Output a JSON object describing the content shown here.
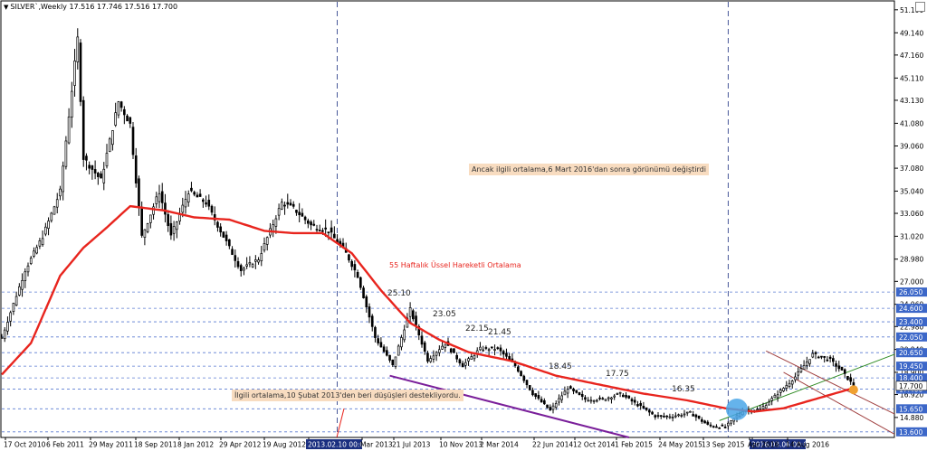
{
  "header": {
    "symbol_line": "SILVER`,Weekly  17.516 17.746 17.516 17.700"
  },
  "annotations": {
    "box_top": "Ancak ilgili ortalama,6 Mart 2016'dan sonra görünümü değiştirdi",
    "ema_label": "55 Haftalık Üssel Hareketli Ortalama",
    "box_bottom": "İlgili ortalama,10 Şubat 2013'den beri düşüşleri destekliyordu.",
    "peaks": [
      "25.10",
      "23.05",
      "22.15",
      "21.45",
      "18.45",
      "17.75",
      "16.35"
    ]
  },
  "colors": {
    "bull": "#ffffff",
    "bear": "#000000",
    "ema": "#e8251e",
    "grid_dash": "#5a7bd1",
    "support_line": "#7a1f9a",
    "channel": "#a04040",
    "trend_green": "#2e8b22",
    "price_box": "#3c67c8",
    "date_box": "#1b2f80",
    "blue_circle": "#4aa6e8",
    "orange_circle": "#f0a030"
  },
  "chart_data": {
    "type": "candlestick",
    "symbol": "SILVER`",
    "timeframe": "Weekly",
    "ylim": [
      13.1,
      51.9
    ],
    "y_ticks": [
      "51.190",
      "49.140",
      "47.160",
      "45.110",
      "43.130",
      "41.080",
      "39.060",
      "37.080",
      "35.040",
      "33.060",
      "31.020",
      "28.980",
      "27.000",
      "24.960",
      "22.980",
      "20.940",
      "18.900",
      "16.920",
      "14.880"
    ],
    "x_ticks": [
      "17 Oct 2010",
      "6 Feb 2011",
      "29 May 2011",
      "18 Sep 2011",
      "8 Jan 2012",
      "29 Apr 2012",
      "19 Aug 2012",
      "2013.02.10 00:00",
      "Mar 2013",
      "21 Jul 2013",
      "10 Nov 2013",
      "2 Mar 2014",
      "22 Jun 2014",
      "12 Oct 2014",
      "1 Feb 2015",
      "24 May 2015",
      "13 Sep 2015",
      "2016.03.06 00:00",
      "Apr 2016",
      "14 Aug 2016"
    ],
    "levels": [
      26.05,
      24.6,
      23.4,
      22.05,
      20.65,
      19.45,
      18.4,
      17.4,
      15.65,
      13.6
    ],
    "level_labels": [
      "26.050",
      "24.600",
      "23.400",
      "22.050",
      "20.650",
      "19.450",
      "18.400",
      "17.400",
      "15.650",
      "13.600"
    ],
    "last_price": "17.700",
    "price_points": [
      {
        "t": 0,
        "v": 22.0
      },
      {
        "t": 8,
        "v": 28.0
      },
      {
        "t": 14,
        "v": 31.0
      },
      {
        "t": 20,
        "v": 35.0
      },
      {
        "t": 26,
        "v": 48.6
      },
      {
        "t": 28,
        "v": 38.0
      },
      {
        "t": 34,
        "v": 36.0
      },
      {
        "t": 40,
        "v": 43.0
      },
      {
        "t": 44,
        "v": 41.0
      },
      {
        "t": 48,
        "v": 31.0
      },
      {
        "t": 54,
        "v": 35.0
      },
      {
        "t": 58,
        "v": 31.0
      },
      {
        "t": 64,
        "v": 35.0
      },
      {
        "t": 70,
        "v": 34.0
      },
      {
        "t": 76,
        "v": 31.0
      },
      {
        "t": 82,
        "v": 28.0
      },
      {
        "t": 88,
        "v": 29.0
      },
      {
        "t": 96,
        "v": 34.0
      },
      {
        "t": 100,
        "v": 33.5
      },
      {
        "t": 106,
        "v": 32.0
      },
      {
        "t": 112,
        "v": 31.5
      },
      {
        "t": 118,
        "v": 29.5
      },
      {
        "t": 122,
        "v": 27.5
      },
      {
        "t": 128,
        "v": 22.0
      },
      {
        "t": 134,
        "v": 19.5
      },
      {
        "t": 140,
        "v": 24.5
      },
      {
        "t": 146,
        "v": 20.0
      },
      {
        "t": 152,
        "v": 21.5
      },
      {
        "t": 158,
        "v": 19.5
      },
      {
        "t": 164,
        "v": 21.0
      },
      {
        "t": 170,
        "v": 21.0
      },
      {
        "t": 176,
        "v": 19.5
      },
      {
        "t": 182,
        "v": 17.0
      },
      {
        "t": 188,
        "v": 15.5
      },
      {
        "t": 194,
        "v": 17.5
      },
      {
        "t": 200,
        "v": 16.5
      },
      {
        "t": 206,
        "v": 16.5
      },
      {
        "t": 212,
        "v": 17.0
      },
      {
        "t": 218,
        "v": 16.0
      },
      {
        "t": 224,
        "v": 15.0
      },
      {
        "t": 230,
        "v": 15.0
      },
      {
        "t": 236,
        "v": 15.3
      },
      {
        "t": 242,
        "v": 14.2
      },
      {
        "t": 248,
        "v": 14.0
      },
      {
        "t": 254,
        "v": 15.5
      },
      {
        "t": 260,
        "v": 15.6
      },
      {
        "t": 266,
        "v": 17.0
      },
      {
        "t": 272,
        "v": 18.5
      },
      {
        "t": 278,
        "v": 20.5
      },
      {
        "t": 284,
        "v": 20.0
      },
      {
        "t": 288,
        "v": 19.0
      },
      {
        "t": 292,
        "v": 17.7
      }
    ],
    "ema_points": [
      {
        "t": 0,
        "v": 18.7
      },
      {
        "t": 10,
        "v": 21.5
      },
      {
        "t": 20,
        "v": 27.5
      },
      {
        "t": 28,
        "v": 30.0
      },
      {
        "t": 36,
        "v": 31.8
      },
      {
        "t": 44,
        "v": 33.7
      },
      {
        "t": 56,
        "v": 33.3
      },
      {
        "t": 66,
        "v": 32.7
      },
      {
        "t": 78,
        "v": 32.5
      },
      {
        "t": 90,
        "v": 31.5
      },
      {
        "t": 100,
        "v": 31.3
      },
      {
        "t": 110,
        "v": 31.3
      },
      {
        "t": 120,
        "v": 29.5
      },
      {
        "t": 130,
        "v": 26.2
      },
      {
        "t": 140,
        "v": 23.3
      },
      {
        "t": 150,
        "v": 21.8
      },
      {
        "t": 160,
        "v": 20.7
      },
      {
        "t": 175,
        "v": 19.9
      },
      {
        "t": 190,
        "v": 18.6
      },
      {
        "t": 205,
        "v": 17.8
      },
      {
        "t": 220,
        "v": 17.0
      },
      {
        "t": 235,
        "v": 16.4
      },
      {
        "t": 248,
        "v": 15.7
      },
      {
        "t": 258,
        "v": 15.4
      },
      {
        "t": 268,
        "v": 15.7
      },
      {
        "t": 280,
        "v": 16.6
      },
      {
        "t": 292,
        "v": 17.5
      }
    ],
    "vertical_markers_t": [
      115,
      249
    ],
    "support_line": [
      {
        "t": 133,
        "v": 18.6
      },
      {
        "t": 215,
        "v": 13.1
      }
    ],
    "green_trend": [
      {
        "t": 246,
        "v": 14.6
      },
      {
        "t": 306,
        "v": 20.5
      }
    ],
    "channel_upper": [
      {
        "t": 262,
        "v": 20.8
      },
      {
        "t": 306,
        "v": 15.2
      }
    ],
    "channel_lower": [
      {
        "t": 268,
        "v": 18.9
      },
      {
        "t": 306,
        "v": 13.4
      }
    ]
  }
}
